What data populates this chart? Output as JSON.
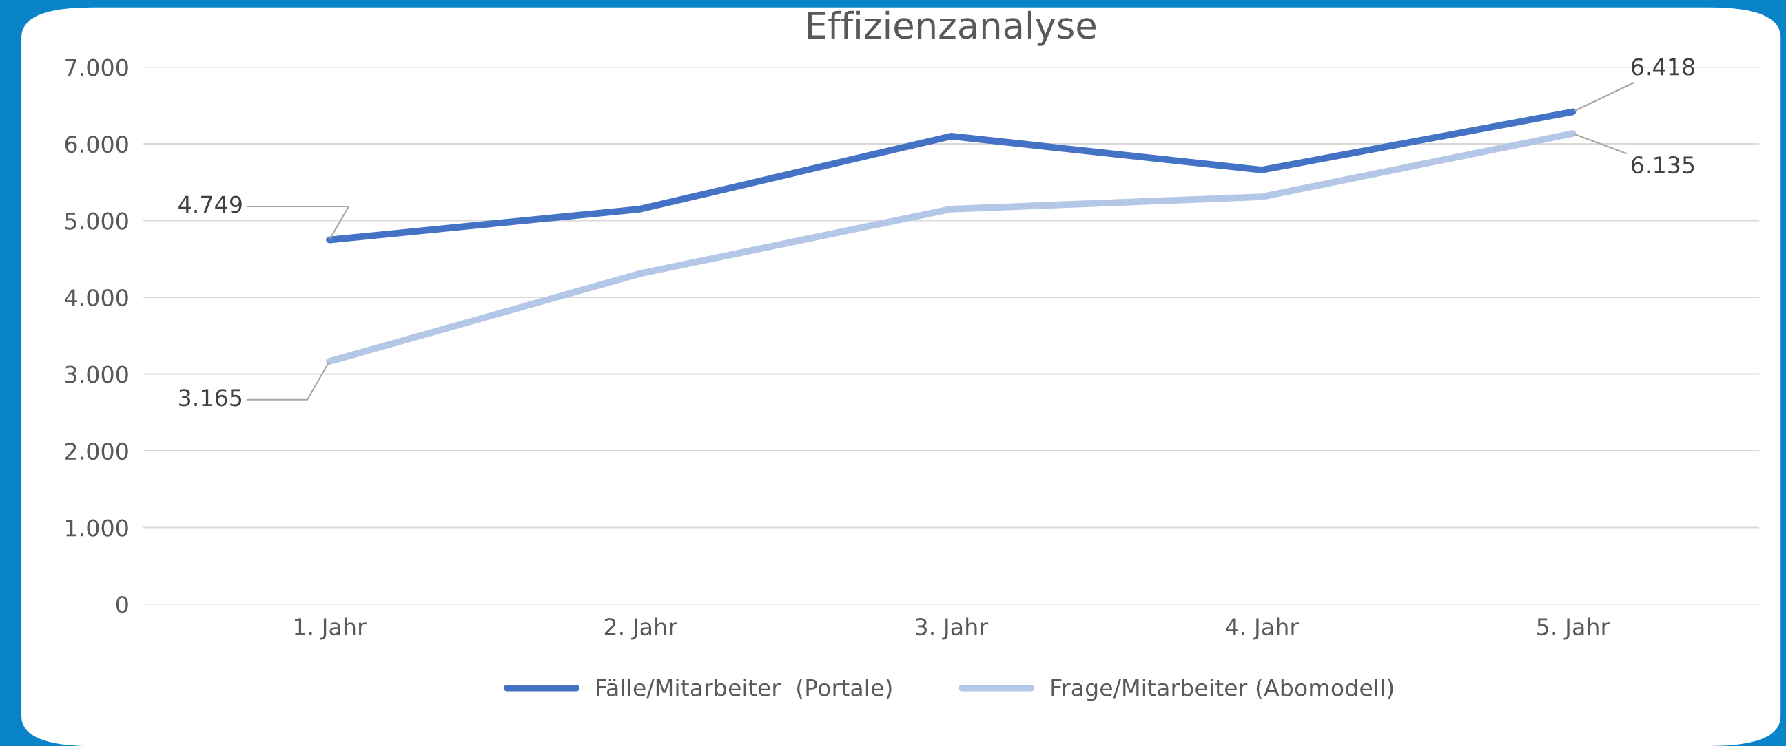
{
  "chart_data": {
    "type": "line",
    "title": "Effizienzanalyse",
    "categories": [
      "1. Jahr",
      "2. Jahr",
      "3. Jahr",
      "4. Jahr",
      "5. Jahr"
    ],
    "series": [
      {
        "name": "Fälle/Mitarbeiter  (Portale)",
        "color": "#4472c4",
        "values": [
          4749,
          5150,
          6100,
          5660,
          6418
        ],
        "value_labels": [
          "4.749",
          null,
          null,
          null,
          "6.418"
        ]
      },
      {
        "name": "Frage/Mitarbeiter (Abomodell)",
        "color": "#b4c7e7",
        "values": [
          3165,
          4310,
          5150,
          5310,
          6135
        ],
        "value_labels": [
          "3.165",
          null,
          null,
          null,
          "6.135"
        ]
      }
    ],
    "ylim": [
      0,
      7000
    ],
    "yticks": [
      {
        "value": 0,
        "label": "0"
      },
      {
        "value": 1000,
        "label": "1.000"
      },
      {
        "value": 2000,
        "label": "2.000"
      },
      {
        "value": 3000,
        "label": "3.000"
      },
      {
        "value": 4000,
        "label": "4.000"
      },
      {
        "value": 5000,
        "label": "5.000"
      },
      {
        "value": 6000,
        "label": "6.000"
      },
      {
        "value": 7000,
        "label": "7.000"
      }
    ],
    "grid": "y",
    "legend": "bottom",
    "marker": "none",
    "line_style": "solid"
  }
}
